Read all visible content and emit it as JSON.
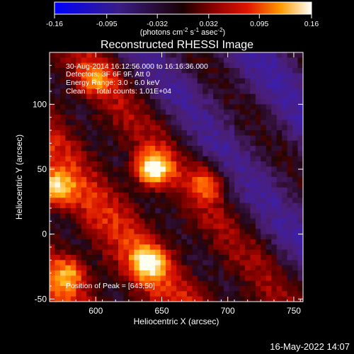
{
  "chart_data": {
    "type": "heatmap",
    "title": "Reconstructed RHESSI Image",
    "xlabel": "Heliocentric X (arcsec)",
    "ylabel": "Heliocentric Y (arcsec)",
    "xlim": [
      565,
      757
    ],
    "ylim": [
      -52,
      140
    ],
    "xticks": [
      600,
      650,
      700,
      750
    ],
    "yticks": [
      -50,
      0,
      50,
      100
    ],
    "colorbar": {
      "range": [
        -0.16,
        0.16
      ],
      "tick_values": [
        -0.16,
        -0.095,
        -0.032,
        0.032,
        0.095,
        0.16
      ],
      "tick_labels": [
        "-0.16",
        "-0.095",
        "-0.032",
        "0.032",
        "0.095",
        "0.16"
      ],
      "label": "(photons cm-2 s-1 asec-2)"
    },
    "annotations": {
      "time": "30-Aug-2014 16:12:56.000 to 16:16:36.000",
      "detectors": "Detectors: 3F 6F 9F, Att 0",
      "energy": "Energy Range: 3.0 - 6.0 keV",
      "clean": "Clean     Total counts: 1.01E+04",
      "peak": "Position of Peak = [643,50]"
    },
    "sources": [
      {
        "x": 643,
        "y": 50,
        "peak": 0.16
      },
      {
        "x": 640,
        "y": -22,
        "peak": 0.115
      },
      {
        "x": 570,
        "y": 35,
        "peak": 0.11
      },
      {
        "x": 580,
        "y": -30,
        "peak": 0.085
      },
      {
        "x": 600,
        "y": 120,
        "peak": 0.075
      },
      {
        "x": 685,
        "y": 40,
        "peak": 0.08
      }
    ]
  },
  "footer": {
    "timestamp": "16-May-2022 14:07"
  }
}
